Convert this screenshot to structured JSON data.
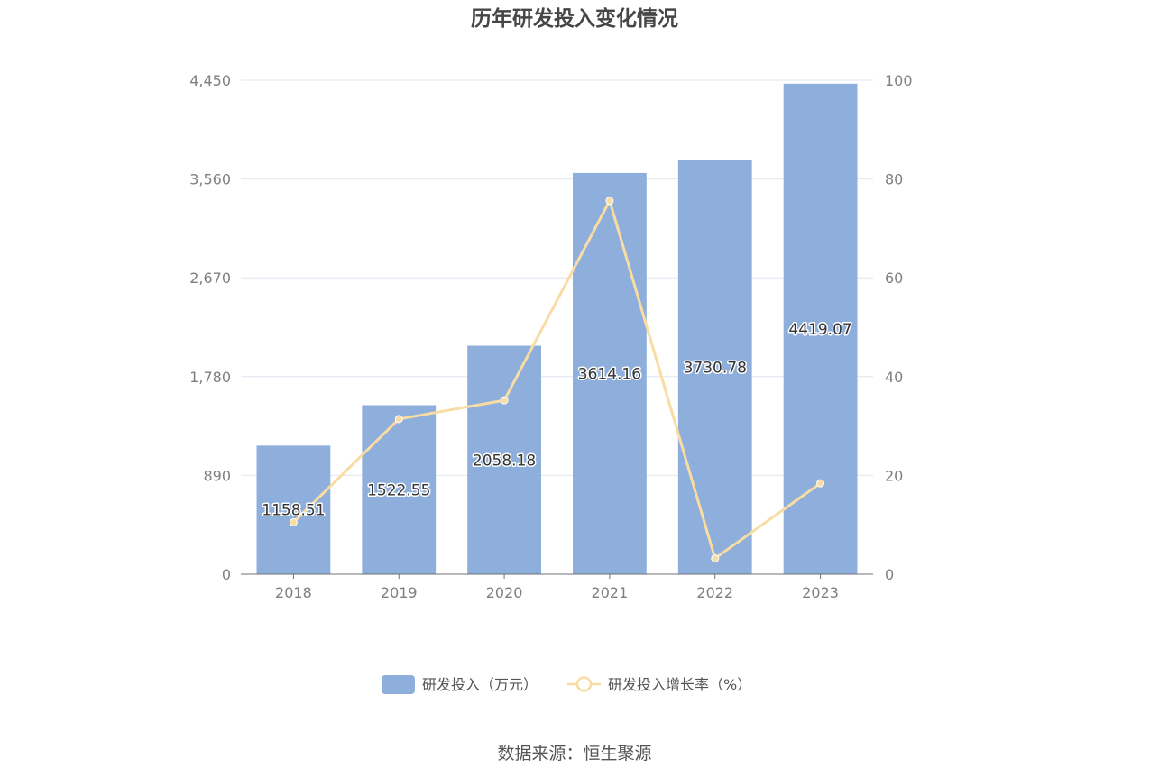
{
  "chart_data": {
    "type": "bar",
    "title": "历年研发投入变化情况",
    "categories": [
      "2018",
      "2019",
      "2020",
      "2021",
      "2022",
      "2023"
    ],
    "series": [
      {
        "name": "研发投入（万元）",
        "type": "bar",
        "axis": "left",
        "values": [
          1158.51,
          1522.55,
          2058.18,
          3614.16,
          3730.78,
          4419.07
        ],
        "labels": [
          "1158.51",
          "1522.55",
          "2058.18",
          "3614.16",
          "3730.78",
          "4419.07"
        ],
        "color": "#8eaedb"
      },
      {
        "name": "研发投入增长率（%）",
        "type": "line",
        "axis": "right",
        "values": [
          10.5,
          31.4,
          35.2,
          75.6,
          3.2,
          18.4
        ],
        "color": "#f9dca4"
      }
    ],
    "y_left": {
      "ylim": [
        0,
        4450
      ],
      "ticks": [
        0,
        890,
        1780,
        2670,
        3560,
        4450
      ],
      "tick_labels": [
        "0",
        "890",
        "1,780",
        "2,670",
        "3,560",
        "4,450"
      ]
    },
    "y_right": {
      "ylim": [
        0,
        100
      ],
      "ticks": [
        0,
        20,
        40,
        60,
        80,
        100
      ],
      "tick_labels": [
        "0",
        "20",
        "40",
        "60",
        "80",
        "100"
      ]
    },
    "grid": true,
    "legend_position": "bottom-center"
  },
  "source": "数据来源：恒生聚源",
  "colors": {
    "axis": "#6e7079",
    "grid": "#e0e6f1",
    "tick_text": "#7f7f7f"
  }
}
